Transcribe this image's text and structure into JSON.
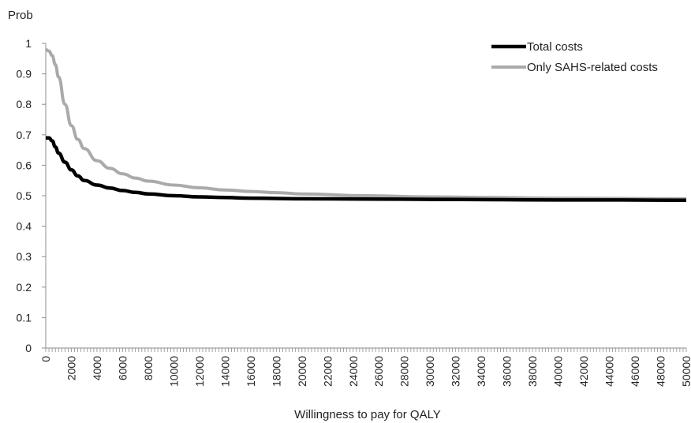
{
  "chart_data": {
    "type": "line",
    "title": "",
    "xlabel": "Willingness to pay for QALY",
    "ylabel": "Prob",
    "xlim": [
      0,
      50000
    ],
    "ylim": [
      0,
      1
    ],
    "x_ticks": [
      0,
      2000,
      4000,
      6000,
      8000,
      10000,
      12000,
      14000,
      16000,
      18000,
      20000,
      22000,
      24000,
      26000,
      28000,
      30000,
      32000,
      34000,
      36000,
      38000,
      40000,
      42000,
      44000,
      46000,
      48000,
      50000
    ],
    "y_ticks": [
      0,
      0.1,
      0.2,
      0.3,
      0.4,
      0.5,
      0.6,
      0.7,
      0.8,
      0.9,
      1
    ],
    "y_tick_labels": [
      "0",
      "0.1",
      "0.2",
      "0.3",
      "0.4",
      "0.5",
      "0.6",
      "0.7",
      "0.8",
      "0.9",
      "1"
    ],
    "grid": false,
    "legend_position": "top-right",
    "series": [
      {
        "name": "Total costs",
        "color": "#000000",
        "x": [
          0,
          250,
          500,
          750,
          1000,
          1500,
          2000,
          2500,
          3000,
          4000,
          5000,
          6000,
          7000,
          8000,
          10000,
          12000,
          14000,
          16000,
          18000,
          20000,
          25000,
          30000,
          35000,
          40000,
          45000,
          50000
        ],
        "y": [
          0.69,
          0.69,
          0.68,
          0.66,
          0.64,
          0.61,
          0.585,
          0.565,
          0.55,
          0.535,
          0.525,
          0.517,
          0.511,
          0.506,
          0.5,
          0.496,
          0.494,
          0.492,
          0.491,
          0.49,
          0.489,
          0.488,
          0.487,
          0.486,
          0.486,
          0.485
        ]
      },
      {
        "name": "Only SAHS-related costs",
        "color": "#aaaaaa",
        "x": [
          0,
          250,
          500,
          750,
          1000,
          1500,
          2000,
          2500,
          3000,
          4000,
          5000,
          6000,
          7000,
          8000,
          10000,
          12000,
          14000,
          16000,
          18000,
          20000,
          25000,
          30000,
          35000,
          40000,
          45000,
          50000
        ],
        "y": [
          0.98,
          0.975,
          0.96,
          0.93,
          0.89,
          0.8,
          0.73,
          0.685,
          0.655,
          0.615,
          0.59,
          0.572,
          0.558,
          0.548,
          0.535,
          0.526,
          0.519,
          0.514,
          0.51,
          0.506,
          0.5,
          0.496,
          0.494,
          0.492,
          0.491,
          0.49
        ]
      }
    ]
  }
}
